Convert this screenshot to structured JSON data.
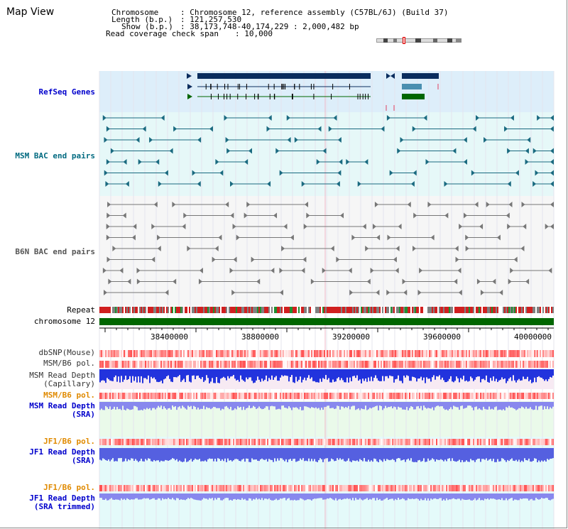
{
  "page_title": "Map View",
  "info": {
    "chromosome_label": "Chromosome",
    "chromosome_value": ": Chromosome 12, reference assembly (C57BL/6J) (Build 37)",
    "length_label": "Length (b.p.)",
    "length_value": ": 121,257,530",
    "show_label": "Show (b.p.)",
    "show_value": ": 38,173,748-40,174,229 : 2,000,482 bp",
    "coverage_label": "Read coverage check span",
    "coverage_value": ": 10,000"
  },
  "tracks": {
    "refseq": "RefSeq Genes",
    "msm_bac": "MSM BAC end pairs",
    "b6n_bac": "B6N BAC end pairs",
    "repeat": "Repeat",
    "chromosome": "chromosome 12",
    "dbsnp": "dbSNP(Mouse)",
    "msm_b6_pol_1": "MSM/B6 pol.",
    "msm_depth_cap_1": "MSM Read Depth",
    "msm_depth_cap_2": "(Capillary)",
    "msm_b6_pol_2": "MSM/B6 pol.",
    "msm_depth_sra_1": "MSM Read Depth",
    "msm_depth_sra_2": "(SRA)",
    "jf1_b6_pol_1": "JF1/B6 pol.",
    "jf1_depth_sra_1": "JF1 Read Depth",
    "jf1_depth_sra_2": "(SRA)",
    "jf1_b6_pol_2": "JF1/B6 pol.",
    "jf1_depth_trim_1": "JF1 Read Depth",
    "jf1_depth_trim_2": "(SRA trimmed)"
  },
  "axis": {
    "ticks": [
      "38400000",
      "38800000",
      "39200000",
      "39600000",
      "40000000"
    ]
  },
  "colors": {
    "refseq_bg": "#ddeefa",
    "msm_bac_bg": "#e6f8f8",
    "b6n_bac_bg": "#f4f4f4",
    "gene_dark": "#0a2d5e",
    "gene_teal": "#4a8fb0",
    "gene_green": "#006600",
    "msm_bac_line": "#1a6a80",
    "b6n_bac_line": "#777777",
    "chromosome_bar": "#006600",
    "label_blue": "#0000cc",
    "label_teal": "#006a80",
    "label_orange": "#e08a00",
    "depth_blue": "#2233dd",
    "depth_light": "#8888ee"
  }
}
